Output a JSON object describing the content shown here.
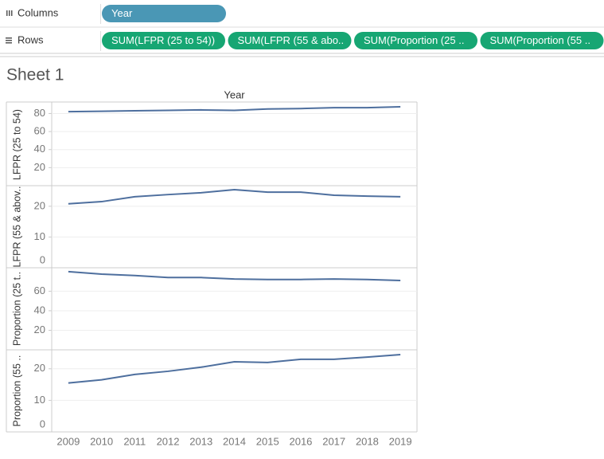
{
  "shelves": {
    "columns": {
      "label": "Columns",
      "pills": [
        "Year"
      ]
    },
    "rows": {
      "label": "Rows",
      "pills": [
        "SUM(LFPR (25 to 54))",
        "SUM(LFPR (55 & abo..",
        "SUM(Proportion (25 ..",
        "SUM(Proportion (55 .."
      ]
    }
  },
  "sheet_title": "Sheet 1",
  "chart_data": [
    {
      "type": "line",
      "x_title": "Year",
      "y_title": "LFPR (25 to 54)",
      "color": "#4e6f9e",
      "values": [
        82,
        82.5,
        83,
        83.5,
        84,
        83.5,
        85,
        85.5,
        86.5,
        86.5,
        87.5
      ],
      "ylim": [
        0,
        91
      ],
      "yticks": [
        20,
        40,
        60,
        80
      ],
      "grid": true
    },
    {
      "type": "line",
      "y_title": "LFPR (55 & abov..",
      "color": "#4e6f9e",
      "values": [
        20.8,
        21.5,
        23.1,
        23.8,
        24.4,
        25.4,
        24.6,
        24.6,
        23.6,
        23.3,
        23.1
      ],
      "ylim": [
        0,
        26.7
      ],
      "yticks": [
        0,
        10,
        20
      ],
      "grid": true
    },
    {
      "type": "line",
      "y_title": "Proportion (25 t..",
      "color": "#4e6f9e",
      "values": [
        80,
        77.5,
        76,
        74,
        74,
        72.5,
        72,
        72,
        72.5,
        72,
        71
      ],
      "ylim": [
        0,
        84
      ],
      "yticks": [
        20,
        40,
        60
      ],
      "grid": true
    },
    {
      "type": "line",
      "y_title": "Proportion (55 ..",
      "color": "#4e6f9e",
      "categories": [
        "2009",
        "2010",
        "2011",
        "2012",
        "2013",
        "2014",
        "2015",
        "2016",
        "2017",
        "2018",
        "2019"
      ],
      "values": [
        15.5,
        16.5,
        18.2,
        19.2,
        20.5,
        22.2,
        22,
        23,
        23,
        23.7,
        24.5
      ],
      "ylim": [
        0,
        26
      ],
      "yticks": [
        0,
        10,
        20
      ],
      "grid": true
    }
  ]
}
